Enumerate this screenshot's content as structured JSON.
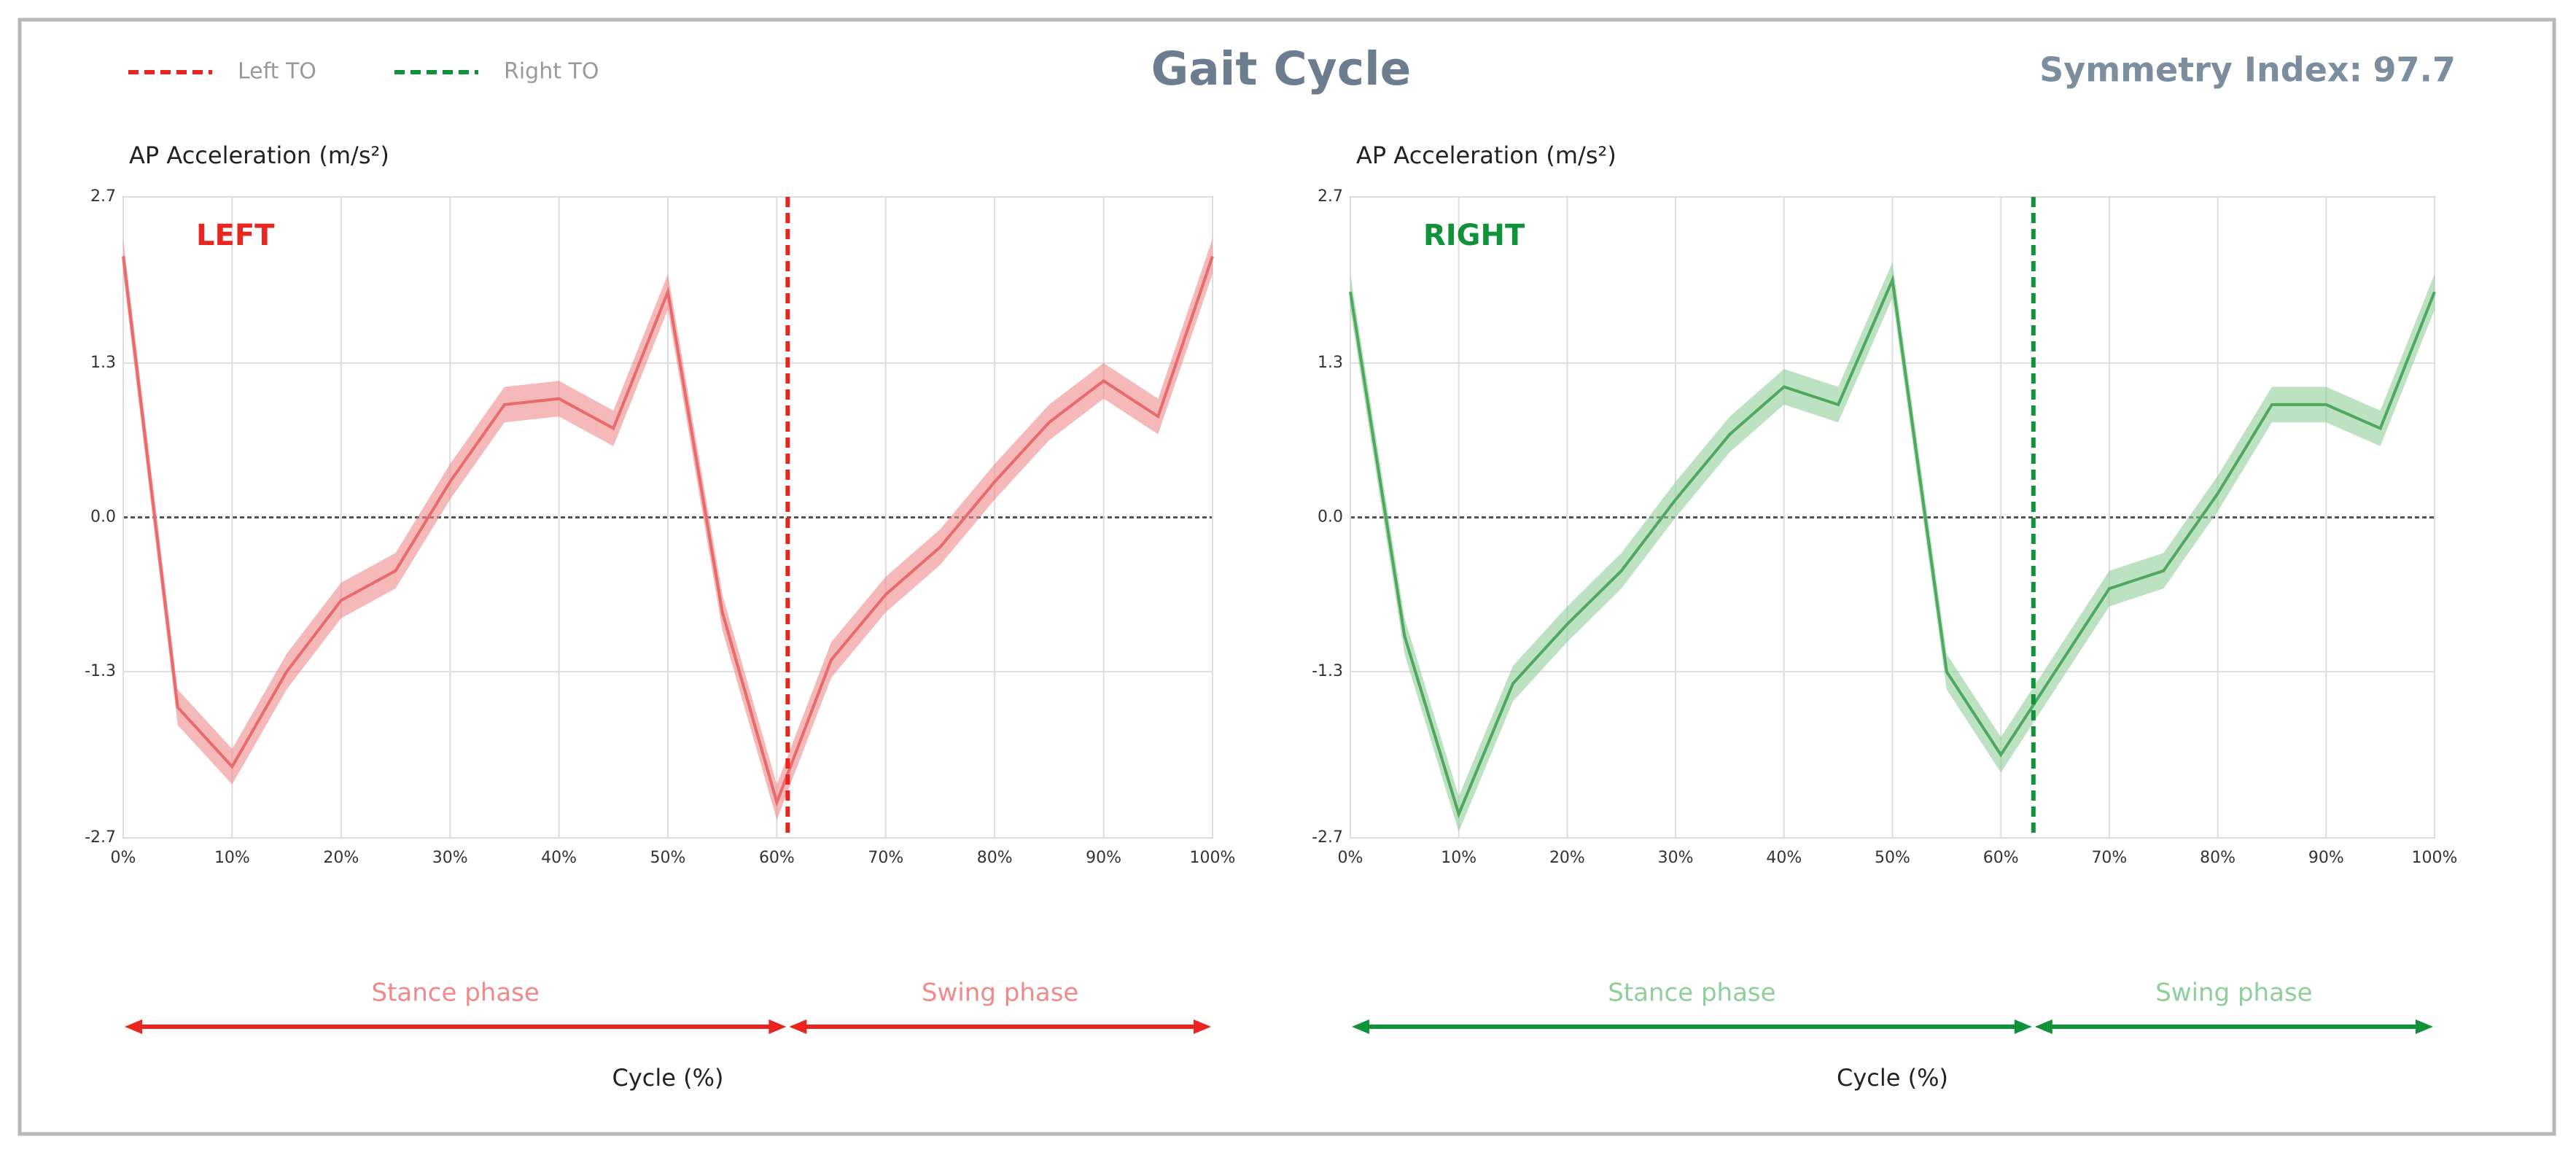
{
  "header": {
    "title": "Gait Cycle",
    "symmetry_label": "Symmetry Index:",
    "symmetry_value": 97.7,
    "legend": [
      {
        "name": "Left TO",
        "color": "#e8251f"
      },
      {
        "name": "Right TO",
        "color": "#10923a"
      }
    ]
  },
  "chart_data": [
    {
      "type": "line",
      "label": "LEFT",
      "ylabel": "AP Acceleration (m/s²)",
      "xlabel": "Cycle (%)",
      "color": "#f08a8a",
      "line_color": "#e86a6a",
      "band": 0.15,
      "toe_off": 61,
      "toe_off_color": "#e8251f",
      "phases": [
        "Stance phase",
        "Swing phase"
      ],
      "x": [
        0,
        5,
        10,
        15,
        20,
        25,
        30,
        35,
        40,
        45,
        50,
        55,
        60,
        65,
        70,
        75,
        80,
        85,
        90,
        95,
        100
      ],
      "values": [
        2.2,
        -1.6,
        -2.1,
        -1.3,
        -0.7,
        -0.45,
        0.3,
        0.95,
        1.0,
        0.75,
        1.9,
        -0.8,
        -2.4,
        -1.2,
        -0.65,
        -0.25,
        0.3,
        0.8,
        1.15,
        0.85,
        2.2
      ],
      "xlim": [
        0,
        100
      ],
      "xticks": [
        {
          "value": 0,
          "label": "0%"
        },
        {
          "value": 10,
          "label": "10%"
        },
        {
          "value": 20,
          "label": "20%"
        },
        {
          "value": 30,
          "label": "30%"
        },
        {
          "value": 40,
          "label": "40%"
        },
        {
          "value": 50,
          "label": "50%"
        },
        {
          "value": 60,
          "label": "60%"
        },
        {
          "value": 70,
          "label": "70%"
        },
        {
          "value": 80,
          "label": "80%"
        },
        {
          "value": 90,
          "label": "90%"
        },
        {
          "value": 100,
          "label": "100%"
        }
      ],
      "ylim": [
        -2.7,
        2.7
      ],
      "yticks": [
        -2.7,
        -1.3,
        {
          "value": 0,
          "label": "0.0"
        },
        1.3,
        2.7
      ]
    },
    {
      "type": "line",
      "label": "RIGHT",
      "ylabel": "AP Acceleration (m/s²)",
      "xlabel": "Cycle (%)",
      "color": "#8fce9a",
      "line_color": "#4ea860",
      "band": 0.15,
      "toe_off": 63,
      "toe_off_color": "#10923a",
      "phases": [
        "Stance phase",
        "Swing phase"
      ],
      "x": [
        0,
        5,
        10,
        15,
        20,
        25,
        30,
        35,
        40,
        45,
        50,
        55,
        60,
        65,
        70,
        75,
        80,
        85,
        90,
        95,
        100
      ],
      "values": [
        1.9,
        -1.0,
        -2.5,
        -1.4,
        -0.9,
        -0.45,
        0.15,
        0.7,
        1.1,
        0.95,
        2.0,
        -1.3,
        -2.0,
        -1.3,
        -0.6,
        -0.45,
        0.2,
        0.95,
        0.95,
        0.75,
        1.9
      ],
      "xlim": [
        0,
        100
      ],
      "xticks": [
        {
          "value": 0,
          "label": "0%"
        },
        {
          "value": 10,
          "label": "10%"
        },
        {
          "value": 20,
          "label": "20%"
        },
        {
          "value": 30,
          "label": "30%"
        },
        {
          "value": 40,
          "label": "40%"
        },
        {
          "value": 50,
          "label": "50%"
        },
        {
          "value": 60,
          "label": "60%"
        },
        {
          "value": 70,
          "label": "70%"
        },
        {
          "value": 80,
          "label": "80%"
        },
        {
          "value": 90,
          "label": "90%"
        },
        {
          "value": 100,
          "label": "100%"
        }
      ],
      "ylim": [
        -2.7,
        2.7
      ],
      "yticks": [
        -2.7,
        -1.3,
        {
          "value": 0,
          "label": "0.0"
        },
        1.3,
        2.7
      ]
    }
  ]
}
